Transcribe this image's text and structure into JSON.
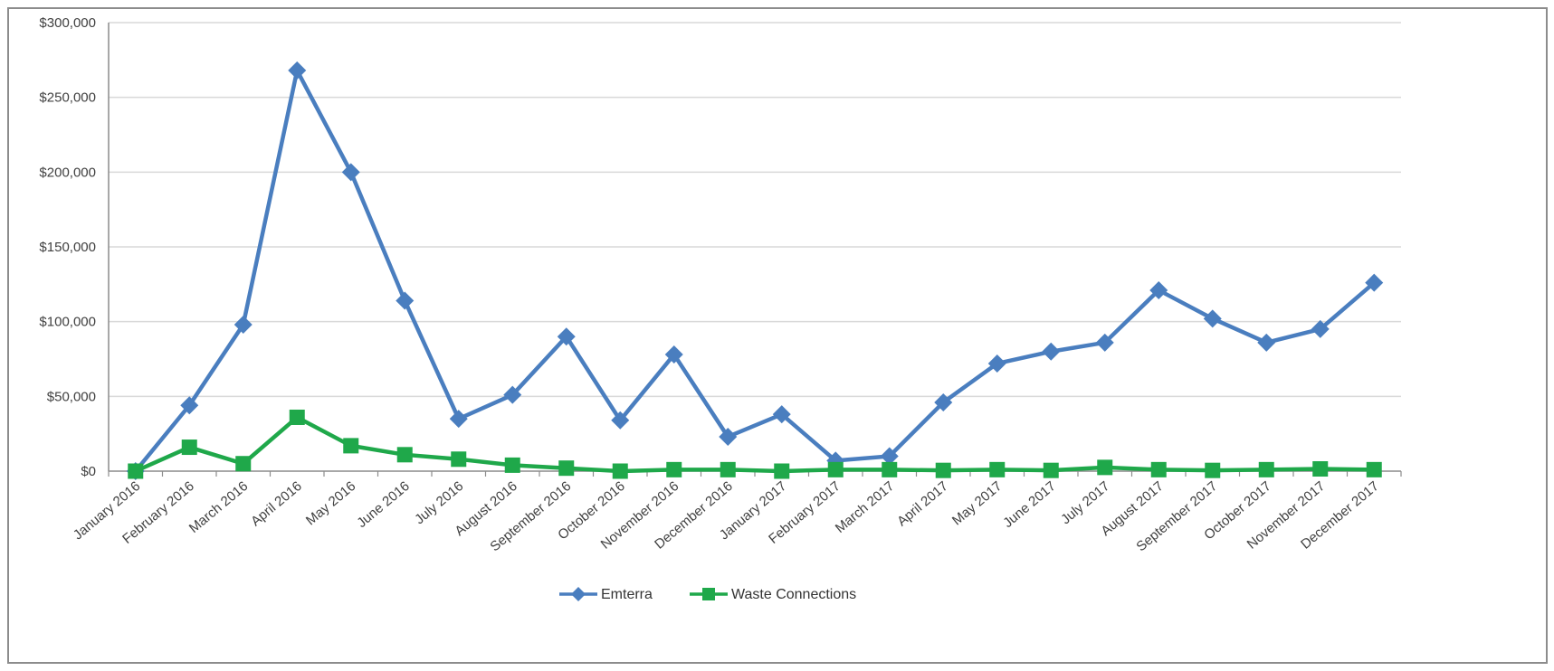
{
  "caption_fragment": "",
  "colors": {
    "emterra": "#4a7ebf",
    "waste": "#1fa84a",
    "grid": "#d9d9d9",
    "axis": "#8c8c8c"
  },
  "chart_data": {
    "type": "line",
    "title": "",
    "xlabel": "",
    "ylabel": "",
    "categories": [
      "January 2016",
      "February 2016",
      "March 2016",
      "April 2016",
      "May 2016",
      "June 2016",
      "July 2016",
      "August 2016",
      "September 2016",
      "October 2016",
      "November 2016",
      "December 2016",
      "January 2017",
      "February 2017",
      "March 2017",
      "April 2017",
      "May 2017",
      "June 2017",
      "July 2017",
      "August 2017",
      "September 2017",
      "October 2017",
      "November 2017",
      "December 2017"
    ],
    "ylim": [
      0,
      300000
    ],
    "yticks": [
      0,
      50000,
      100000,
      150000,
      200000,
      250000,
      300000
    ],
    "ytick_labels": [
      "$0",
      "$50,000",
      "$100,000",
      "$150,000",
      "$200,000",
      "$250,000",
      "$300,000"
    ],
    "grid": true,
    "legend_position": "bottom",
    "series": [
      {
        "name": "Emterra",
        "marker": "diamond",
        "values": [
          0,
          44000,
          98000,
          268000,
          200000,
          114000,
          35000,
          51000,
          90000,
          34000,
          78000,
          23000,
          38000,
          7000,
          10000,
          46000,
          72000,
          80000,
          86000,
          121000,
          102000,
          86000,
          95000,
          126000
        ]
      },
      {
        "name": "Waste Connections",
        "marker": "square",
        "values": [
          0,
          16000,
          5000,
          36000,
          17000,
          11000,
          8000,
          4000,
          2000,
          0,
          1000,
          1000,
          0,
          1000,
          1000,
          500,
          1000,
          500,
          2500,
          1000,
          500,
          1000,
          1500,
          1000
        ]
      }
    ]
  }
}
